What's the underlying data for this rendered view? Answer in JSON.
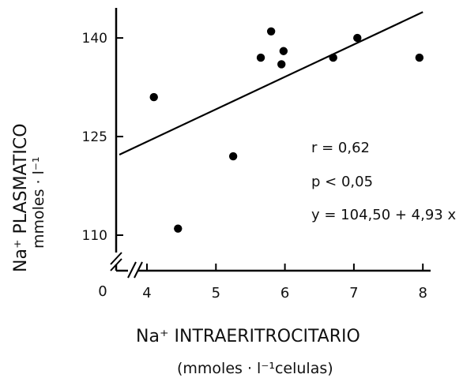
{
  "chart_data": {
    "type": "scatter",
    "title": "",
    "xlabel": "Na⁺ INTRAERITROCITARIO",
    "xlabel_units": "(mmoles · l⁻¹celulas)",
    "ylabel": "Na⁺ PLASMATICO",
    "ylabel_units": "mmoles · l⁻¹",
    "xlim": [
      3.5,
      8.5
    ],
    "ylim": [
      110,
      145
    ],
    "x_origin_label": "0",
    "axis_breaks": true,
    "grid": false,
    "xticks": [
      "4",
      "5",
      "6",
      "7",
      "8"
    ],
    "yticks": [
      "110",
      "125",
      "140"
    ],
    "points": [
      {
        "x": 4.1,
        "y": 131
      },
      {
        "x": 4.45,
        "y": 111
      },
      {
        "x": 5.25,
        "y": 122
      },
      {
        "x": 5.65,
        "y": 137
      },
      {
        "x": 5.8,
        "y": 141
      },
      {
        "x": 5.95,
        "y": 136
      },
      {
        "x": 5.98,
        "y": 138
      },
      {
        "x": 6.7,
        "y": 137
      },
      {
        "x": 7.05,
        "y": 140
      },
      {
        "x": 7.95,
        "y": 137
      }
    ],
    "regression": {
      "intercept": 104.5,
      "slope": 4.93,
      "x_range": [
        3.6,
        8.0
      ]
    },
    "annotations": [
      "r = 0,62",
      "p < 0,05",
      "y = 104,50 + 4,93 x"
    ]
  }
}
